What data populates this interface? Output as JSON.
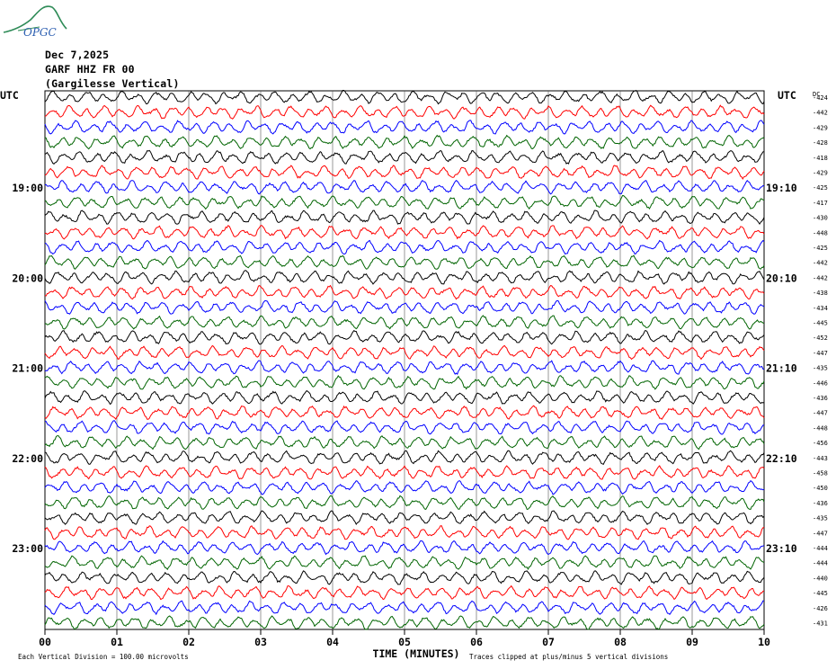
{
  "header": {
    "logo_text": "OPGC",
    "date": "Dec 7,2025",
    "station": "GARF HHZ FR 00",
    "location": "(Gargilesse Vertical)"
  },
  "chart_data": {
    "type": "line",
    "title": "GARF HHZ FR 00",
    "xlabel": "TIME (MINUTES)",
    "ylabel": "UTC",
    "left_axis_label": "UTC",
    "right_axis_label": "UTC",
    "dc_label": "DC",
    "xlim": [
      0,
      10
    ],
    "x_ticks": [
      "00",
      "01",
      "02",
      "03",
      "04",
      "05",
      "06",
      "07",
      "08",
      "09",
      "10"
    ],
    "left_time_labels": [
      {
        "row": 6,
        "label": "19:00"
      },
      {
        "row": 12,
        "label": "20:00"
      },
      {
        "row": 18,
        "label": "21:00"
      },
      {
        "row": 24,
        "label": "22:00"
      },
      {
        "row": 30,
        "label": "23:00"
      }
    ],
    "right_time_labels": [
      {
        "row": 6,
        "label": "19:10"
      },
      {
        "row": 12,
        "label": "20:10"
      },
      {
        "row": 18,
        "label": "21:10"
      },
      {
        "row": 24,
        "label": "22:10"
      },
      {
        "row": 30,
        "label": "23:10"
      }
    ],
    "trace_colors": [
      "#000000",
      "#ff0000",
      "#0000ff",
      "#006400"
    ],
    "dc_offsets": [
      "-424",
      "-442",
      "-429",
      "-428",
      "-418",
      "-429",
      "-425",
      "-417",
      "-430",
      "-448",
      "-425",
      "-442",
      "-442",
      "-438",
      "-434",
      "-445",
      "-452",
      "-447",
      "-435",
      "-446",
      "-436",
      "-447",
      "-448",
      "-456",
      "-443",
      "-458",
      "-450",
      "-436",
      "-435",
      "-447",
      "-444",
      "-444",
      "-440",
      "-445",
      "-426",
      "-431"
    ],
    "footer_left": "Each Vertical Division =  100.00 microvolts",
    "footer_right": "Traces clipped at plus/minus 5 vertical divisions",
    "grid": true
  }
}
